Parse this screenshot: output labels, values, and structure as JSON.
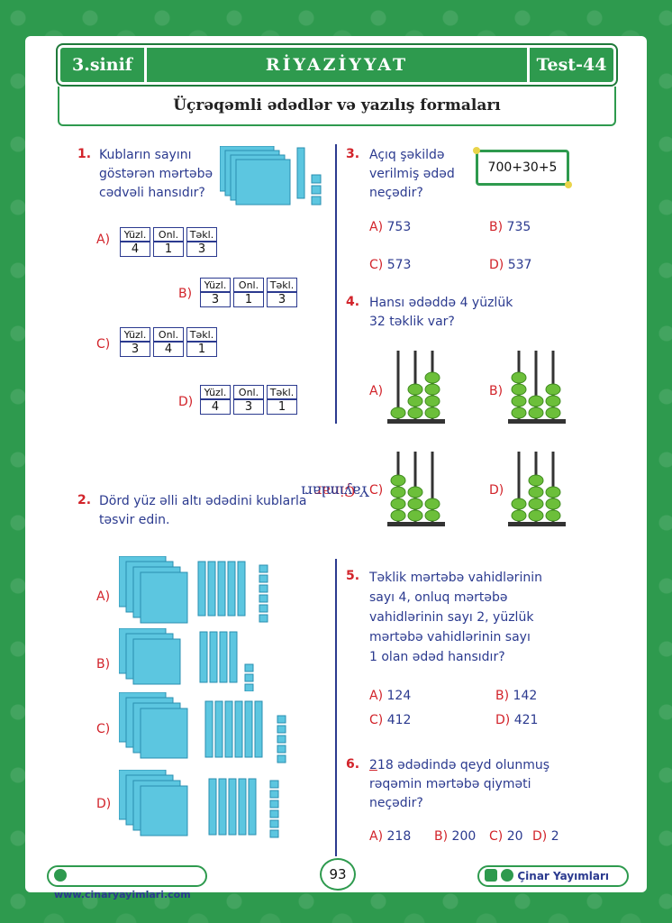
{
  "header": {
    "grade": "3.sinif",
    "subject": "RİYAZİYYAT",
    "test": "Test-44"
  },
  "topic": "Üçrəqəmli ədədlər və yazılış formaları",
  "side_label": {
    "part1": "Çinar",
    "part2": "Yayımları"
  },
  "table_headers": [
    "Yüzl.",
    "Onl.",
    "Təkl."
  ],
  "q1": {
    "num": "1.",
    "line1": "Kubların sayını",
    "line2": "göstərən mərtəbə",
    "line3": "cədvəli hansıdır?",
    "options": [
      {
        "label": "A)",
        "values": [
          "4",
          "1",
          "3"
        ]
      },
      {
        "label": "B)",
        "values": [
          "3",
          "1",
          "3"
        ]
      },
      {
        "label": "C)",
        "values": [
          "3",
          "4",
          "1"
        ]
      },
      {
        "label": "D)",
        "values": [
          "4",
          "3",
          "1"
        ]
      }
    ]
  },
  "q2": {
    "num": "2.",
    "line1": "Dörd yüz əlli altı ədədini kublarla",
    "line2": "təsvir edin.",
    "options": [
      "A)",
      "B)",
      "C)",
      "D)"
    ]
  },
  "q3": {
    "num": "3.",
    "line1": "Açıq şəkildə",
    "line2": "verilmiş ədəd",
    "line3": "neçədir?",
    "expression": "700+30+5",
    "options": [
      {
        "label": "A)",
        "value": "753"
      },
      {
        "label": "B)",
        "value": "735"
      },
      {
        "label": "C)",
        "value": "573"
      },
      {
        "label": "D)",
        "value": "537"
      }
    ]
  },
  "q4": {
    "num": "4.",
    "line1": "Hansı ədəddə 4 yüzlük",
    "line2": "32 təklik var?",
    "options": [
      "A)",
      "B)",
      "C)",
      "D)"
    ]
  },
  "q5": {
    "num": "5.",
    "line1": "Təklik mərtəbə vahidlərinin",
    "line2": "sayı 4, onluq mərtəbə",
    "line3": "vahidlərinin sayı 2, yüzlük",
    "line4": "mərtəbə vahidlərinin sayı",
    "line5": "1 olan ədəd hansıdır?",
    "options": [
      {
        "label": "A)",
        "value": "124"
      },
      {
        "label": "B)",
        "value": "142"
      },
      {
        "label": "C)",
        "value": "412"
      },
      {
        "label": "D)",
        "value": "421"
      }
    ]
  },
  "q6": {
    "num": "6.",
    "digit": "2",
    "line1_rest": "18 ədədində qeyd olunmuş",
    "line2": "rəqəmin mərtəbə qiyməti",
    "line3": "neçədir?",
    "options": [
      {
        "label": "A)",
        "value": "218"
      },
      {
        "label": "B)",
        "value": "200"
      },
      {
        "label": "C)",
        "value": "20"
      },
      {
        "label": "D)",
        "value": "2"
      }
    ]
  },
  "footer": {
    "website": "www.cinaryayimlari.com",
    "page": "93",
    "publisher": "Çinar Yayımları"
  },
  "colors": {
    "green": "#2e9a4e",
    "navy": "#2b3a8f",
    "red": "#d2232a",
    "cube": "#5cc6e0",
    "bead": "#6cbf3a"
  }
}
